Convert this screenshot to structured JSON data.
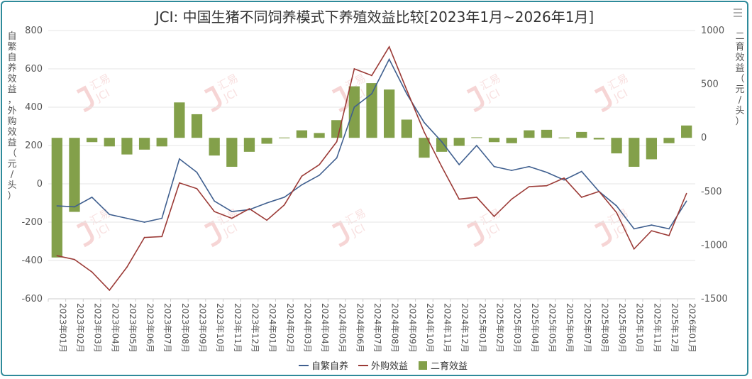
{
  "chart_data": {
    "type": "bar+line",
    "title": "JCI: 中国生猪不同饲养模式下养殖效益比较[2023年1月~2026年1月]",
    "ylabel_left": "自繁自养效益，外购效益（元/头）",
    "ylabel_right": "二育效益（元/头）",
    "ylim_left": [
      -600,
      800
    ],
    "yticks_left": [
      -600,
      -400,
      -200,
      0,
      200,
      400,
      600,
      800
    ],
    "ylim_right": [
      -1500,
      1000
    ],
    "yticks_right": [
      -1500,
      -1000,
      -500,
      0,
      500,
      1000
    ],
    "grid": true,
    "legend_position": "bottom",
    "categories": [
      "2023年01月",
      "2023年02月",
      "2023年03月",
      "2023年04月",
      "2023年05月",
      "2023年06月",
      "2023年07月",
      "2023年08月",
      "2023年09月",
      "2023年10月",
      "2023年11月",
      "2023年12月",
      "2024年01月",
      "2024年02月",
      "2024年03月",
      "2024年04月",
      "2024年05月",
      "2024年06月",
      "2024年07月",
      "2024年08月",
      "2024年09月",
      "2024年10月",
      "2024年11月",
      "2024年12月",
      "2025年01月",
      "2025年02月",
      "2025年03月",
      "2025年04月",
      "2025年05月",
      "2025年06月",
      "2025年07月",
      "2025年08月",
      "2025年09月",
      "2025年10月",
      "2025年11月",
      "2025年12月",
      "2026年01月"
    ],
    "series": [
      {
        "name": "自繁自养",
        "type": "line",
        "axis": "left",
        "color": "#3f5f8f",
        "values": [
          -115,
          -120,
          -70,
          -160,
          -180,
          -200,
          -180,
          130,
          60,
          -90,
          -145,
          -135,
          -100,
          -70,
          -5,
          45,
          135,
          400,
          470,
          650,
          470,
          320,
          220,
          100,
          200,
          90,
          70,
          90,
          60,
          20,
          65,
          -40,
          -115,
          -235,
          -215,
          -235,
          -90
        ]
      },
      {
        "name": "外购效益",
        "type": "line",
        "axis": "left",
        "color": "#9b3a36",
        "values": [
          -375,
          -395,
          -460,
          -555,
          -435,
          -280,
          -275,
          5,
          -25,
          -145,
          -180,
          -130,
          -190,
          -110,
          40,
          100,
          220,
          600,
          565,
          715,
          490,
          270,
          90,
          -80,
          -70,
          -170,
          -80,
          -15,
          -10,
          30,
          -70,
          -40,
          -150,
          -340,
          -245,
          -270,
          -50
        ]
      },
      {
        "name": "二育效益",
        "type": "bar",
        "axis": "right",
        "color": "#83a04a",
        "values": [
          -1115,
          -690,
          -40,
          -80,
          -155,
          -110,
          -80,
          330,
          220,
          -165,
          -270,
          -130,
          -55,
          3,
          70,
          45,
          165,
          480,
          510,
          450,
          170,
          -185,
          -130,
          -75,
          5,
          -40,
          -50,
          70,
          75,
          3,
          55,
          -15,
          -145,
          -270,
          -200,
          -50,
          115
        ]
      }
    ]
  },
  "watermark": {
    "brand": "汇易",
    "sub": "JCI"
  },
  "menu_icon": "hamburger-menu-icon"
}
